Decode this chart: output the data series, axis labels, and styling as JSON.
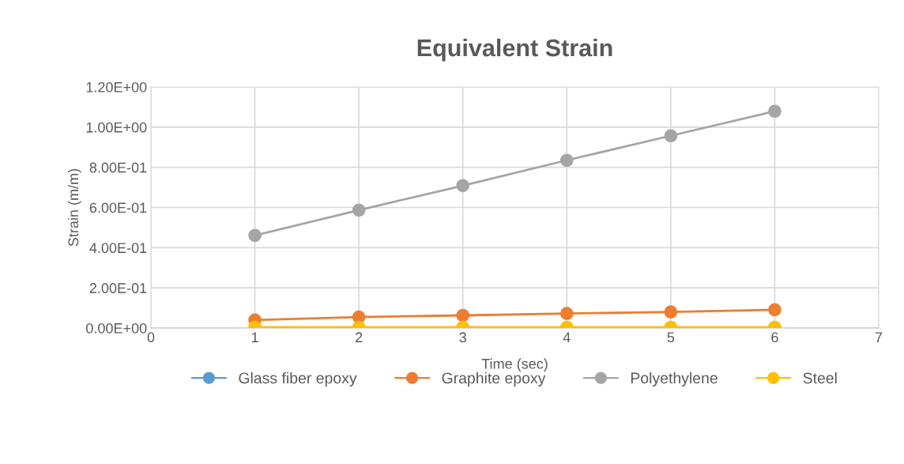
{
  "chart_data": {
    "type": "line",
    "title": "Equivalent Strain",
    "xlabel": "Time (sec)",
    "ylabel": "Strain (m/m)",
    "x": [
      1,
      2,
      3,
      4,
      5,
      6
    ],
    "series": [
      {
        "name": "Glass fiber epoxy",
        "color": "#5b9bd5",
        "values": [
          null,
          null,
          null,
          null,
          null,
          null
        ]
      },
      {
        "name": "Graphite epoxy",
        "color": "#ed7d31",
        "values": [
          0.04,
          0.055,
          0.063,
          0.072,
          0.08,
          0.091
        ]
      },
      {
        "name": "Polyethylene",
        "color": "#a5a5a5",
        "values": [
          0.461,
          0.587,
          0.709,
          0.835,
          0.957,
          1.079
        ]
      },
      {
        "name": "Steel",
        "color": "#ffc000",
        "values": [
          0.004,
          0.004,
          0.004,
          0.004,
          0.004,
          0.004
        ]
      }
    ],
    "xlim": [
      0,
      7
    ],
    "xticks": [
      0,
      1,
      2,
      3,
      4,
      5,
      6,
      7
    ],
    "ylim": [
      0,
      1.2
    ],
    "yticks": [
      {
        "value": 0,
        "label": "0.00E+00"
      },
      {
        "value": 0.2,
        "label": "2.00E-01"
      },
      {
        "value": 0.4,
        "label": "4.00E-01"
      },
      {
        "value": 0.6,
        "label": "6.00E-01"
      },
      {
        "value": 0.8,
        "label": "8.00E-01"
      },
      {
        "value": 1.0,
        "label": "1.00E+00"
      },
      {
        "value": 1.2,
        "label": "1.20E+00"
      }
    ],
    "grid": true,
    "legend": "bottom",
    "marker": "circle",
    "line_style": "solid"
  }
}
